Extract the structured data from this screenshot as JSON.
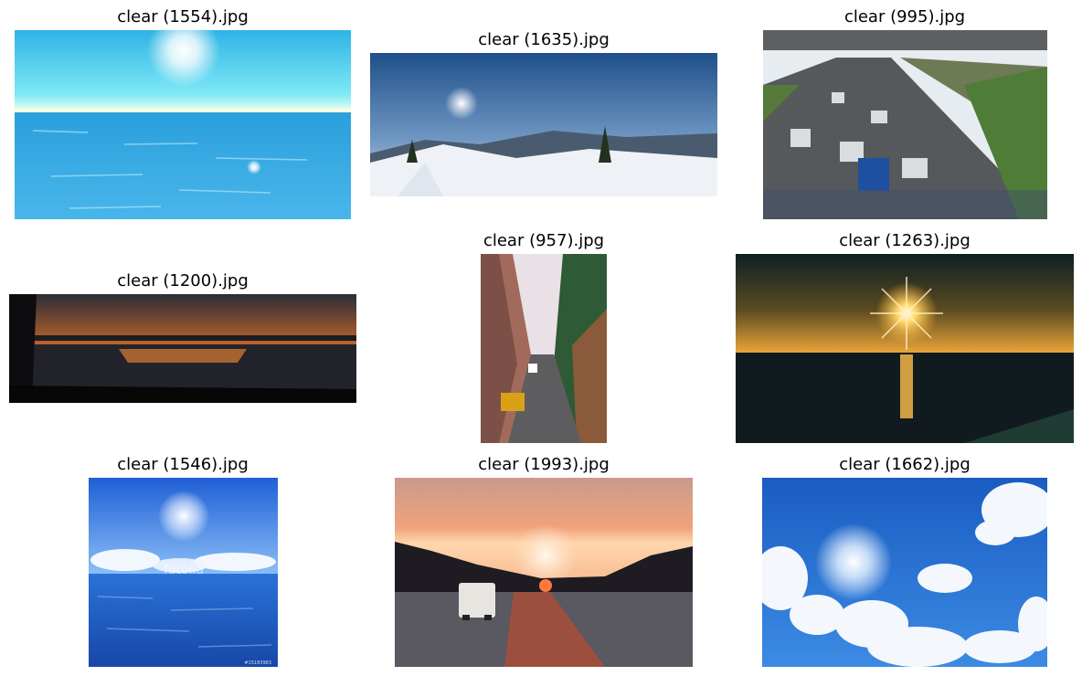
{
  "images": [
    {
      "title": "clear (1554).jpg",
      "scene": "sun over ocean horizon"
    },
    {
      "title": "clear (1635).jpg",
      "scene": "snowy mountain panorama with sun"
    },
    {
      "title": "clear (995).jpg",
      "scene": "highway traffic under bridge"
    },
    {
      "title": "clear (1200).jpg",
      "scene": "sunset over lake"
    },
    {
      "title": "clear (957).jpg",
      "scene": "narrow city street with buildings"
    },
    {
      "title": "clear (1263).jpg",
      "scene": "sun setting over sea"
    },
    {
      "title": "clear (1546).jpg",
      "scene": "sun over blue water with clouds",
      "watermark": "fotolia",
      "watermark_id": "#15183983"
    },
    {
      "title": "clear (1993).jpg",
      "scene": "sunset over highway with van"
    },
    {
      "title": "clear (1662).jpg",
      "scene": "sun in blue sky with clouds"
    }
  ]
}
